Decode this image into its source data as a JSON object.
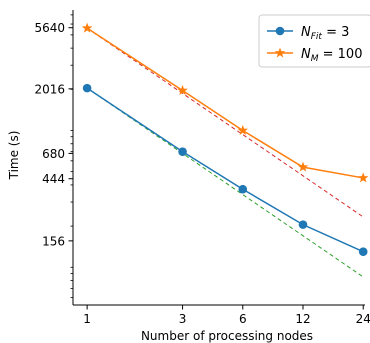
{
  "chart_data": {
    "type": "line",
    "x_scale": "log",
    "y_scale": "log",
    "xlabel": "Number of processing nodes",
    "ylabel": "Time (s)",
    "x": [
      1,
      3,
      6,
      12,
      24
    ],
    "x_tick_labels": [
      "1",
      "3",
      "6",
      "12",
      "24"
    ],
    "y_ticks": [
      156,
      444,
      680,
      2016,
      5640
    ],
    "y_tick_labels": [
      "156",
      "444",
      "680",
      "2016",
      "5640"
    ],
    "xlim": [
      0.85,
      24.5
    ],
    "ylim": [
      53,
      7600
    ],
    "grid": false,
    "legend_position": "top-right",
    "series": [
      {
        "name": "N_Fit = 3",
        "label_main": "N",
        "label_sub": "Fit",
        "label_tail": " = 3",
        "color": "#1f77b4",
        "marker": "circle",
        "values": [
          2040,
          700,
          372,
          205,
          130
        ]
      },
      {
        "name": "N_M = 100",
        "label_main": "N",
        "label_sub": "M",
        "label_tail": " = 100",
        "color": "#ff7f0e",
        "marker": "star",
        "values": [
          5600,
          1960,
          1000,
          540,
          450
        ]
      }
    ],
    "ideal_scaling": [
      {
        "color": "#2ca02c",
        "start": 2040,
        "style": "dashed"
      },
      {
        "color": "#d62728",
        "start": 5600,
        "style": "dashed"
      }
    ]
  }
}
